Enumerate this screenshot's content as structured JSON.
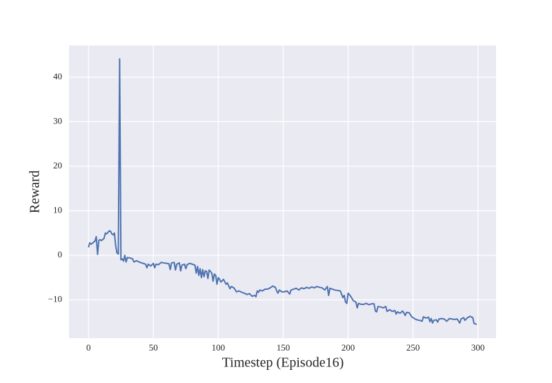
{
  "chart_data": {
    "type": "line",
    "xlabel": "Timestep (Episode16)",
    "ylabel": "Reward",
    "x": [
      0,
      1,
      2,
      3,
      5,
      6,
      7,
      8,
      9,
      10,
      12,
      13,
      14,
      16,
      17,
      18,
      19,
      20,
      21,
      22,
      23,
      24,
      25,
      26,
      27,
      28,
      29,
      30,
      32,
      34,
      35,
      37,
      39,
      40,
      42,
      44,
      45,
      46,
      48,
      50,
      51,
      52,
      54,
      56,
      58,
      60,
      62,
      63,
      64,
      66,
      67,
      68,
      70,
      71,
      72,
      74,
      75,
      76,
      78,
      80,
      82,
      83,
      84,
      85,
      86,
      87,
      88,
      89,
      90,
      91,
      92,
      93,
      95,
      96,
      97,
      98,
      99,
      100,
      101,
      102,
      104,
      106,
      107,
      109,
      110,
      112,
      114,
      116,
      118,
      120,
      122,
      124,
      126,
      128,
      129,
      130,
      131,
      132,
      134,
      136,
      138,
      140,
      142,
      144,
      145,
      146,
      147,
      149,
      151,
      153,
      155,
      156,
      158,
      160,
      162,
      164,
      166,
      168,
      170,
      172,
      174,
      176,
      178,
      180,
      182,
      184,
      185,
      186,
      188,
      190,
      192,
      194,
      196,
      197,
      198,
      199,
      200,
      202,
      204,
      206,
      207,
      208,
      210,
      212,
      214,
      216,
      218,
      220,
      221,
      222,
      223,
      225,
      227,
      229,
      230,
      232,
      234,
      236,
      237,
      238,
      240,
      242,
      244,
      245,
      247,
      249,
      251,
      253,
      255,
      257,
      258,
      260,
      262,
      263,
      264,
      265,
      266,
      268,
      269,
      270,
      272,
      274,
      276,
      277,
      278,
      280,
      282,
      284,
      286,
      287,
      289,
      290,
      292,
      294,
      296,
      297,
      299
    ],
    "series": [
      {
        "color": "#4c72b0",
        "values": [
          1.8,
          2.8,
          2.5,
          2.7,
          3.2,
          4.2,
          0.2,
          3.4,
          3.5,
          3.3,
          3.8,
          5.0,
          4.8,
          5.5,
          5.4,
          4.8,
          4.6,
          5.0,
          2.0,
          0.5,
          0.3,
          44.1,
          -1.0,
          -0.8,
          -1.3,
          0.0,
          -1.5,
          -0.5,
          -0.6,
          -0.8,
          -1.5,
          -1.2,
          -1.5,
          -1.6,
          -1.8,
          -2.0,
          -2.8,
          -2.0,
          -2.4,
          -1.8,
          -2.8,
          -2.0,
          -2.1,
          -1.6,
          -1.7,
          -1.8,
          -1.9,
          -3.2,
          -1.7,
          -1.6,
          -3.3,
          -2.0,
          -1.7,
          -3.5,
          -2.2,
          -2.0,
          -3.0,
          -2.1,
          -1.8,
          -2.0,
          -2.2,
          -4.0,
          -2.5,
          -4.5,
          -3.0,
          -5.0,
          -3.2,
          -4.8,
          -3.5,
          -3.6,
          -5.2,
          -3.3,
          -4.0,
          -5.8,
          -4.2,
          -4.5,
          -6.5,
          -5.0,
          -5.4,
          -6.0,
          -5.4,
          -6.5,
          -6.2,
          -7.5,
          -7.0,
          -7.3,
          -8.2,
          -8.0,
          -8.3,
          -8.5,
          -8.8,
          -8.6,
          -9.2,
          -9.0,
          -9.3,
          -8.0,
          -8.3,
          -7.8,
          -8.0,
          -7.6,
          -7.6,
          -7.3,
          -6.9,
          -7.2,
          -8.0,
          -8.5,
          -7.8,
          -8.2,
          -8.2,
          -8.0,
          -8.7,
          -7.8,
          -7.6,
          -7.4,
          -7.8,
          -7.3,
          -7.5,
          -7.2,
          -7.4,
          -7.1,
          -7.3,
          -7.0,
          -7.2,
          -7.3,
          -7.8,
          -7.0,
          -9.0,
          -7.4,
          -7.6,
          -7.8,
          -7.9,
          -8.0,
          -9.5,
          -9.0,
          -10.5,
          -10.8,
          -8.5,
          -9.2,
          -10.2,
          -10.5,
          -11.8,
          -10.8,
          -11.0,
          -11.0,
          -10.8,
          -11.1,
          -10.9,
          -10.9,
          -12.5,
          -12.7,
          -11.5,
          -11.6,
          -11.8,
          -11.5,
          -12.6,
          -12.2,
          -12.6,
          -12.4,
          -13.2,
          -12.7,
          -13.0,
          -12.5,
          -13.5,
          -12.8,
          -12.9,
          -13.8,
          -14.2,
          -14.5,
          -14.6,
          -14.8,
          -13.8,
          -14.1,
          -13.9,
          -14.9,
          -14.2,
          -15.2,
          -14.6,
          -14.5,
          -15.0,
          -14.3,
          -14.2,
          -14.3,
          -14.8,
          -14.5,
          -14.2,
          -14.3,
          -14.4,
          -14.3,
          -15.2,
          -14.3,
          -14.0,
          -14.6,
          -14.0,
          -13.7,
          -14.0,
          -15.3,
          -15.5
        ]
      }
    ],
    "xlim": [
      -15,
      314
    ],
    "xticks": [
      0,
      50,
      100,
      150,
      200,
      250,
      300
    ],
    "ylim": [
      -18.6,
      47.1
    ],
    "yticks": [
      {
        "value": -10,
        "label": "−10"
      },
      0,
      10,
      20,
      30,
      40
    ],
    "grid": true
  }
}
